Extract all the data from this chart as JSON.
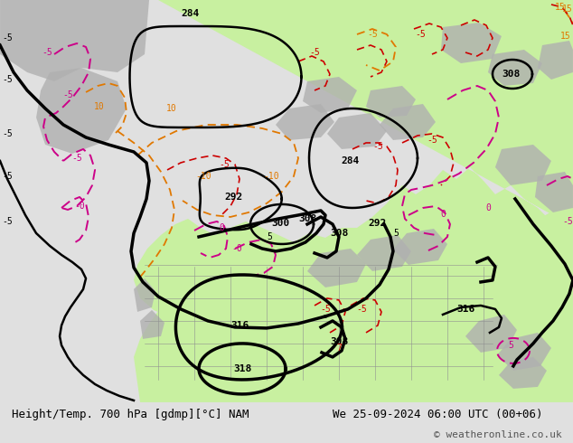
{
  "title_left": "Height/Temp. 700 hPa [gdmp][°C] NAM",
  "title_right": "We 25-09-2024 06:00 UTC (00+06)",
  "copyright": "© weatheronline.co.uk",
  "fig_bg": "#e0e0e0",
  "map_bg": "#dcdcdc",
  "land_color": "#d3d3d3",
  "green_color": "#c8f0a0",
  "gray_color": "#b0b0b0",
  "bottom_bg": "#f0f0f0",
  "font_family": "monospace",
  "font_size_label": 9,
  "dpi": 100,
  "fig_w": 6.34,
  "fig_h": 4.9
}
